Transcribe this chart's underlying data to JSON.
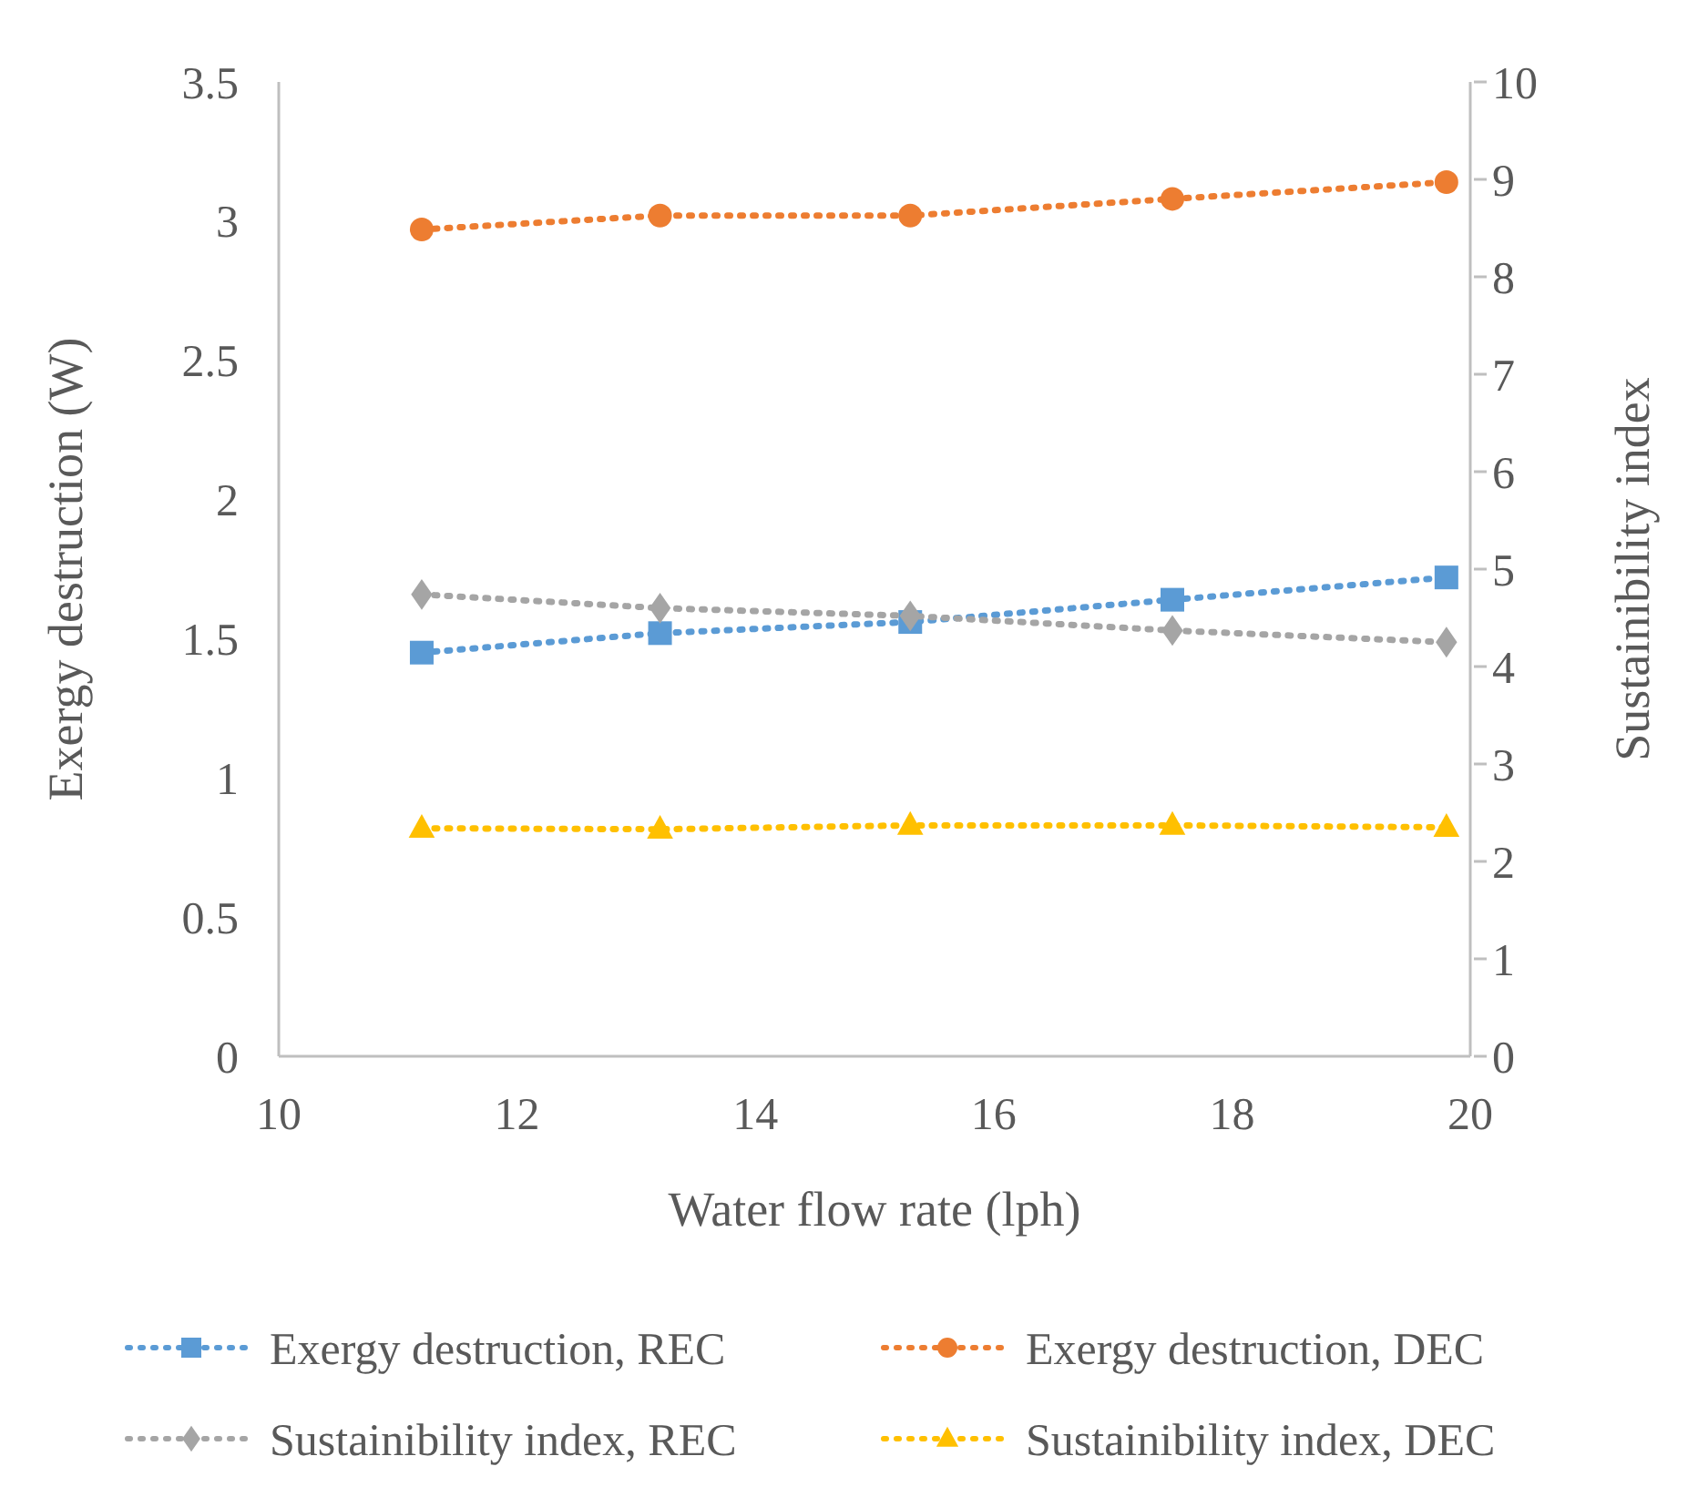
{
  "chart_data": {
    "type": "line",
    "xlabel": "Water flow rate (lph)",
    "ylabel": "Exergy destruction (W)",
    "y2label": "Sustainibility index",
    "x": [
      11.2,
      13.2,
      15.3,
      17.5,
      19.8
    ],
    "xlim": [
      10,
      20
    ],
    "xticks": [
      10,
      12,
      14,
      16,
      18,
      20
    ],
    "ylim": [
      0,
      3.5
    ],
    "yticks": [
      0,
      0.5,
      1,
      1.5,
      2,
      2.5,
      3,
      3.5
    ],
    "y2lim": [
      0,
      10
    ],
    "y2ticks": [
      0,
      1,
      2,
      3,
      4,
      5,
      6,
      7,
      8,
      9,
      10
    ],
    "line_style": "dotted",
    "legend": "bottom",
    "grid": false,
    "series": [
      {
        "name": "Exergy destruction, REC",
        "color": "#5b9bd5",
        "marker": "square",
        "values": [
          1.45,
          1.52,
          1.56,
          1.64,
          1.72
        ]
      },
      {
        "name": "Exergy destruction, DEC",
        "color": "#ed7d31",
        "marker": "circle",
        "values": [
          2.97,
          3.02,
          3.02,
          3.08,
          3.14
        ]
      },
      {
        "name": "Sustainibility index, REC",
        "color": "#a5a5a5",
        "marker": "diamond",
        "axis": "y2",
        "values": [
          4.74,
          4.6,
          4.52,
          4.37,
          4.25
        ]
      },
      {
        "name": "Sustainibility index, DEC",
        "color": "#ffc000",
        "marker": "triangle",
        "axis": "y2",
        "values": [
          2.34,
          2.33,
          2.37,
          2.37,
          2.35
        ]
      }
    ]
  }
}
